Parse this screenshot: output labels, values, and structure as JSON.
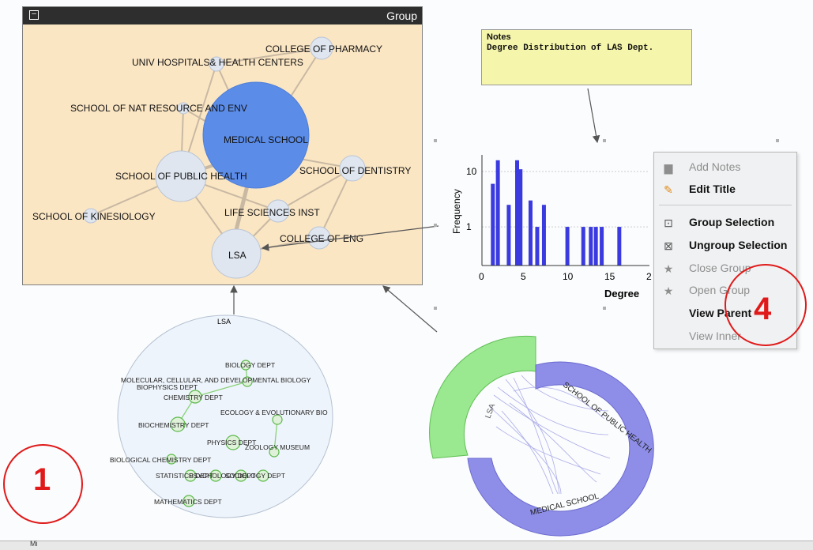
{
  "group_window": {
    "title": "Group",
    "collapse_symbol": "–",
    "nodes": [
      {
        "id": "college-of-pharmacy",
        "label": "COLLEGE OF PHARMACY"
      },
      {
        "id": "univ-hospitals",
        "label": "UNIV HOSPITALS& HEALTH CENTERS"
      },
      {
        "id": "school-nat-resource",
        "label": "SCHOOL OF NAT RESOURCE AND ENV"
      },
      {
        "id": "medical-school",
        "label": "MEDICAL SCHOOL"
      },
      {
        "id": "school-public-health",
        "label": "SCHOOL OF PUBLIC HEALTH"
      },
      {
        "id": "school-dentistry",
        "label": "SCHOOL OF DENTISTRY"
      },
      {
        "id": "school-kinesiology",
        "label": "SCHOOL OF KINESIOLOGY"
      },
      {
        "id": "life-sciences",
        "label": "LIFE SCIENCES INST"
      },
      {
        "id": "college-eng",
        "label": "COLLEGE OF ENG"
      },
      {
        "id": "lsa",
        "label": "LSA"
      }
    ],
    "colors": {
      "background": "#fbe6c4",
      "node": "#dfe6f0",
      "medical_school": "#5b8ce8",
      "edge": "#c9b9a3"
    }
  },
  "notes": {
    "heading": "Notes",
    "text": "Degree Distribution of LAS Dept."
  },
  "chart_data": {
    "type": "bar",
    "xlabel": "Degree",
    "ylabel": "Frequency",
    "yscale": "log",
    "x_ticks": [
      "0",
      "5",
      "10",
      "15",
      "2"
    ],
    "y_ticks": [
      "10",
      "1"
    ],
    "xlim": [
      0,
      20
    ],
    "ylim": [
      0.2,
      20
    ],
    "x": [
      1.3,
      1.9,
      3.2,
      4.2,
      4.6,
      5.8,
      6.6,
      7.4,
      10.2,
      12.1,
      13.0,
      13.6,
      14.3,
      16.4
    ],
    "values": [
      6,
      16,
      2.5,
      16,
      11,
      3,
      1,
      2.5,
      1,
      1,
      1,
      1,
      1,
      1
    ],
    "color": "#3a3ae0"
  },
  "context_menu": {
    "items": [
      {
        "label": "Add Notes",
        "icon": "notes-icon",
        "enabled": false
      },
      {
        "label": "Edit Title",
        "icon": "pencil-icon",
        "enabled": true
      },
      {
        "label": "Group Selection",
        "icon": "group-icon",
        "enabled": true
      },
      {
        "label": "Ungroup Selection",
        "icon": "ungroup-icon",
        "enabled": true
      },
      {
        "label": "Close Group",
        "icon": "star-icon",
        "enabled": false
      },
      {
        "label": "Open Group",
        "icon": "star-icon",
        "enabled": false
      },
      {
        "label": "View Parent",
        "icon": "",
        "enabled": true
      },
      {
        "label": "View Inner",
        "icon": "",
        "enabled": false
      }
    ]
  },
  "lsa_view": {
    "title": "LSA",
    "nodes": [
      {
        "label": "BIOLOGY DEPT"
      },
      {
        "label": "MOLECULAR, CELLULAR, AND DEVELOPMENTAL BIOLOGY"
      },
      {
        "label": "BIOPHYSICS DEPT"
      },
      {
        "label": "CHEMISTRY DEPT"
      },
      {
        "label": "ECOLOGY & EVOLUTIONARY BIO"
      },
      {
        "label": "BIOCHEMISTRY DEPT"
      },
      {
        "label": "PHYSICS DEPT"
      },
      {
        "label": "ZOOLOGY MUSEUM"
      },
      {
        "label": "BIOLOGICAL CHEMISTRY DEPT"
      },
      {
        "label": "STATISTICS DEPT"
      },
      {
        "label": "PSYCHOLOGY DEPT"
      },
      {
        "label": "SOCIOLOGY DEPT"
      },
      {
        "label": "MATHEMATICS DEPT"
      }
    ]
  },
  "chord_view": {
    "labels": {
      "lsa": "LSA",
      "public_health": "SCHOOL OF PUBLIC HEALTH",
      "medical_school": "MEDICAL SCHOOL"
    },
    "colors": {
      "green": "#9ae88f",
      "purple": "#8e8ee8"
    }
  },
  "annotations": {
    "left_number": "1",
    "right_number": "4"
  },
  "status_bar": {
    "text": "Mi"
  }
}
